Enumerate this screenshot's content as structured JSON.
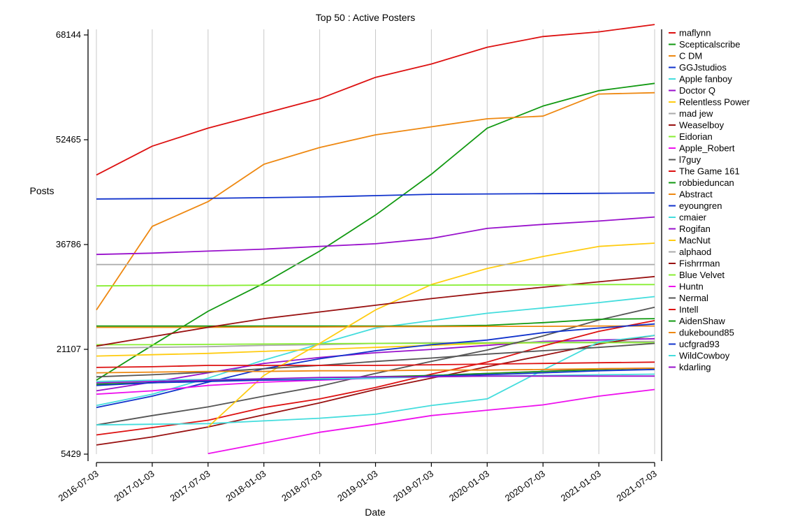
{
  "chart_data": {
    "type": "line",
    "title": "Top 50 : Active Posters",
    "xlabel": "Date",
    "ylabel": "Posts",
    "x": [
      "2016-07-03",
      "2017-01-03",
      "2017-07-03",
      "2018-01-03",
      "2018-07-03",
      "2019-01-03",
      "2019-07-03",
      "2020-01-03",
      "2020-07-03",
      "2021-01-03",
      "2021-07-03"
    ],
    "x_tick_labels": [
      "2016-07-03",
      "2017-01-03",
      "2017-07-03",
      "2018-01-03",
      "2018-07-03",
      "2019-01-03",
      "2019-07-03",
      "2020-01-03",
      "2020-07-03",
      "2021-01-03",
      "2021-07-03"
    ],
    "y_ticks": [
      5429,
      21107,
      36786,
      52465,
      68144
    ],
    "y_tick_labels": [
      "5429",
      "21107",
      "36786",
      "52465",
      "68144"
    ],
    "ylim": [
      5429,
      68144
    ],
    "grid": "vertical",
    "legend_position": "right",
    "series": [
      {
        "name": "maflynn",
        "color": "#dd1111",
        "values": [
          47200,
          51500,
          54200,
          56400,
          58600,
          61800,
          63800,
          66300,
          67900,
          68600,
          69700
        ]
      },
      {
        "name": "Scepticalscribe",
        "color": "#119911",
        "values": [
          16500,
          21700,
          26800,
          31000,
          35800,
          41200,
          47300,
          54200,
          57500,
          59800,
          60900
        ]
      },
      {
        "name": "C DM",
        "color": "#ee8811",
        "values": [
          27000,
          39500,
          43200,
          48800,
          51300,
          53200,
          54400,
          55600,
          56000,
          59300,
          59500
        ]
      },
      {
        "name": "GGJstudios",
        "color": "#1133cc",
        "values": [
          43600,
          43650,
          43700,
          43800,
          43900,
          44100,
          44300,
          44350,
          44400,
          44450,
          44500
        ]
      },
      {
        "name": "Apple fanboy",
        "color": "#44dddd",
        "values": [
          12700,
          14400,
          16800,
          19500,
          21900,
          24300,
          25400,
          26500,
          27300,
          28100,
          29000
        ]
      },
      {
        "name": "Doctor Q",
        "color": "#9911cc",
        "values": [
          14900,
          16200,
          17600,
          19000,
          19900,
          20600,
          21100,
          21700,
          22300,
          22500,
          22700
        ]
      },
      {
        "name": "Relentless Power",
        "color": "#ffcc11",
        "values": [
          20100,
          20300,
          20500,
          20800,
          21100,
          21400,
          21700,
          22000,
          22100,
          22200,
          22300
        ]
      },
      {
        "name": "mad jew",
        "color": "#aaaaaa",
        "values": [
          21300,
          21400,
          21500,
          21700,
          21800,
          22000,
          22100,
          22100,
          22200,
          22200,
          22300
        ]
      },
      {
        "name": "Weaselboy",
        "color": "#991111",
        "values": [
          6800,
          8000,
          9500,
          11300,
          13100,
          15100,
          16800,
          18500,
          20200,
          21900,
          23200
        ]
      },
      {
        "name": "Eidorian",
        "color": "#88ee33",
        "values": [
          21800,
          21800,
          21850,
          21900,
          21950,
          22000,
          22000,
          22050,
          22100,
          22100,
          22100
        ]
      },
      {
        "name": "Apple_Robert",
        "color": "#ee11ee",
        "values": [
          null,
          null,
          5500,
          7100,
          8700,
          9900,
          11200,
          12000,
          12800,
          14100,
          15100
        ]
      },
      {
        "name": "l7guy",
        "color": "#555555",
        "values": [
          9800,
          11200,
          12500,
          14100,
          15600,
          17500,
          19300,
          21000,
          23100,
          25500,
          27400
        ]
      },
      {
        "name": "The Game 161",
        "color": "#dd1111",
        "values": [
          8300,
          9400,
          10500,
          12400,
          13700,
          15400,
          17400,
          19200,
          21600,
          23800,
          25400
        ]
      },
      {
        "name": "robbieduncan",
        "color": "#119911",
        "values": [
          24600,
          24600,
          24600,
          24600,
          24600,
          24600,
          24600,
          24700,
          25100,
          25600,
          25700
        ]
      },
      {
        "name": "Abstract",
        "color": "#ee8811",
        "values": [
          24400,
          24400,
          24400,
          24450,
          24450,
          24500,
          24500,
          24550,
          24550,
          24600,
          24600
        ]
      },
      {
        "name": "eyoungren",
        "color": "#1133cc",
        "values": [
          12400,
          14100,
          16200,
          18200,
          19700,
          20900,
          21800,
          22500,
          23600,
          24300,
          24900
        ]
      },
      {
        "name": "cmaier",
        "color": "#44dddd",
        "values": [
          9800,
          9900,
          10000,
          10400,
          10800,
          11400,
          12700,
          13700,
          18000,
          22200,
          23200
        ]
      },
      {
        "name": "Rogifan",
        "color": "#9911cc",
        "values": [
          35300,
          35500,
          35800,
          36100,
          36500,
          36900,
          37700,
          39200,
          39800,
          40300,
          40900
        ]
      },
      {
        "name": "MacNut",
        "color": "#ffcc11",
        "values": [
          null,
          null,
          9500,
          17200,
          22000,
          27000,
          30800,
          33200,
          35000,
          36500,
          37000
        ]
      },
      {
        "name": "alphaod",
        "color": "#aaaaaa",
        "values": [
          33800,
          33800,
          33800,
          33800,
          33800,
          33800,
          33800,
          33800,
          33800,
          33800,
          33800
        ]
      },
      {
        "name": "Fishrrman",
        "color": "#991111",
        "values": [
          21600,
          23000,
          24400,
          25700,
          26700,
          27700,
          28700,
          29600,
          30400,
          31200,
          32000
        ]
      },
      {
        "name": "Blue Velvet",
        "color": "#88ee33",
        "values": [
          30600,
          30650,
          30650,
          30700,
          30700,
          30700,
          30700,
          30750,
          30750,
          30800,
          30800
        ]
      },
      {
        "name": "Huntn",
        "color": "#ee11ee",
        "values": [
          14400,
          14900,
          15700,
          16200,
          16500,
          16800,
          17200,
          17500,
          17800,
          18200,
          18300
        ]
      },
      {
        "name": "Nermal",
        "color": "#555555",
        "values": [
          17000,
          17300,
          17700,
          18200,
          18700,
          19300,
          19800,
          20400,
          20900,
          21400,
          22000
        ]
      },
      {
        "name": "Intell",
        "color": "#dd1111",
        "values": [
          18400,
          18500,
          18700,
          18700,
          18700,
          18700,
          18800,
          18900,
          19000,
          19100,
          19200
        ]
      },
      {
        "name": "AidenShaw",
        "color": "#119911",
        "values": [
          15900,
          16100,
          16400,
          16600,
          16700,
          17000,
          17200,
          17500,
          17800,
          18100,
          18300
        ]
      },
      {
        "name": "dukebound85",
        "color": "#ee8811",
        "values": [
          17600,
          17700,
          17800,
          17800,
          17900,
          17900,
          18000,
          18000,
          18100,
          18200,
          18300
        ]
      },
      {
        "name": "ucfgrad93",
        "color": "#1133cc",
        "values": [
          15700,
          16100,
          16300,
          16500,
          16600,
          16800,
          17100,
          17300,
          17600,
          17900,
          18100
        ]
      },
      {
        "name": "WildCowboy",
        "color": "#44dddd",
        "values": [
          16300,
          16500,
          16600,
          16700,
          16700,
          16800,
          17000,
          17100,
          17200,
          17300,
          17400
        ]
      },
      {
        "name": "kdarling",
        "color": "#9911cc",
        "values": [
          16100,
          16300,
          16500,
          16700,
          16900,
          17000,
          17000,
          17100,
          17100,
          17100,
          17100
        ]
      }
    ]
  }
}
